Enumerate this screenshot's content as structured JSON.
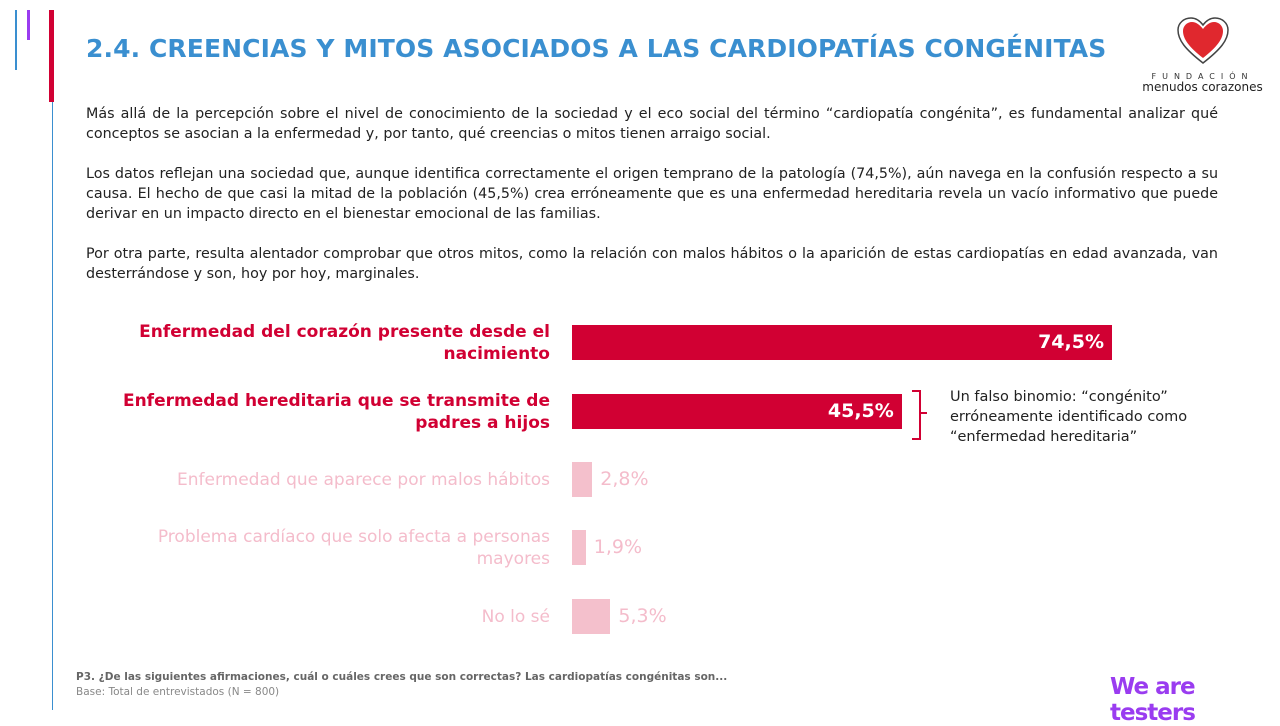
{
  "header": {
    "title": "2.4. CREENCIAS Y MITOS ASOCIADOS A LAS CARDIOPATÍAS CONGÉNITAS",
    "logo": {
      "line1": "FUNDACIÓN",
      "line2": "menudos corazones",
      "icon": "heart-icon"
    }
  },
  "body": {
    "paragraphs": [
      "Más allá de la percepción sobre el nivel de conocimiento de la sociedad y el eco social del término “cardiopatía congénita”, es fundamental analizar qué conceptos se asocian a la enfermedad y, por tanto, qué creencias o mitos tienen arraigo social.",
      "Los datos reflejan una sociedad que, aunque identifica correctamente el origen temprano de la patología (74,5%), aún navega en la confusión respecto a su causa. El hecho de que casi la mitad de la población (45,5%) crea erróneamente que es una enfermedad hereditaria revela un vacío informativo que puede derivar en un impacto directo en el bienestar emocional de las familias.",
      "Por otra parte, resulta alentador comprobar que otros mitos, como la relación con malos hábitos o la aparición de estas cardiopatías en edad avanzada, van desterrándose y son, hoy por hoy, marginales."
    ]
  },
  "chart_data": {
    "type": "bar",
    "orientation": "horizontal",
    "categories": [
      "Enfermedad del corazón presente desde el nacimiento",
      "Enfermedad hereditaria que se transmite de padres a hijos",
      "Enfermedad que aparece por malos hábitos",
      "Problema cardíaco que solo afecta a personas mayores",
      "No lo sé"
    ],
    "values": [
      74.5,
      45.5,
      2.8,
      1.9,
      5.3
    ],
    "value_labels": [
      "74,5%",
      "45,5%",
      "2,8%",
      "1,9%",
      "5,3%"
    ],
    "highlighted": [
      true,
      true,
      false,
      false,
      false
    ],
    "colors": {
      "highlight": "#d10033",
      "muted": "#f4c0cc"
    },
    "xlim": [
      0,
      100
    ],
    "grid": false,
    "annotation": "Un falso binomio: “congénito” erróneamente identificado como “enfermedad hereditaria”"
  },
  "footer": {
    "question": "P3. ¿De las siguientes afirmaciones, cuál o cuáles crees que son correctas? Las cardiopatías congénitas son...",
    "base": "Base: Total de entrevistados (N = 800)",
    "brand": "We are testers"
  }
}
